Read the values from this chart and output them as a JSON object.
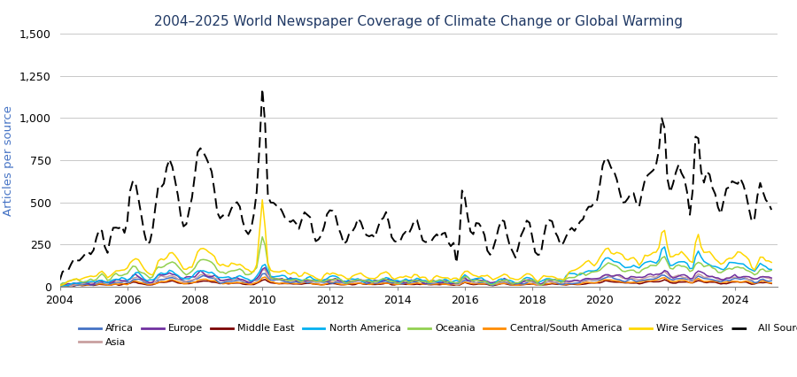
{
  "title": "2004–2025 World Newspaper Coverage of Climate Change or Global Warming",
  "ylabel": "Articles per source",
  "ylim": [
    0,
    1500
  ],
  "yticks": [
    0,
    250,
    500,
    750,
    1000,
    1250,
    1500
  ],
  "ytick_labels": [
    "0",
    "250",
    "500",
    "750",
    "1,000",
    "1,250",
    "1,500"
  ],
  "xlim_start": 2004.0,
  "xlim_end": 2025.25,
  "xticks": [
    2004,
    2006,
    2008,
    2010,
    2012,
    2014,
    2016,
    2018,
    2020,
    2022,
    2024
  ],
  "colors": {
    "Africa": "#4472C4",
    "Asia": "#C9A0A0",
    "Europe": "#7030A0",
    "Middle East": "#7B0000",
    "North America": "#00B0F0",
    "Oceania": "#92D050",
    "Central/South America": "#FF8C00",
    "Wire Services": "#FFD700",
    "All Sources Combined": "#000000"
  },
  "background_color": "#FFFFFF",
  "grid_color": "#C8C8C8",
  "title_color": "#1F3864",
  "ylabel_color": "#4472C4",
  "title_fontsize": 11,
  "axis_fontsize": 9,
  "legend_fontsize": 8
}
